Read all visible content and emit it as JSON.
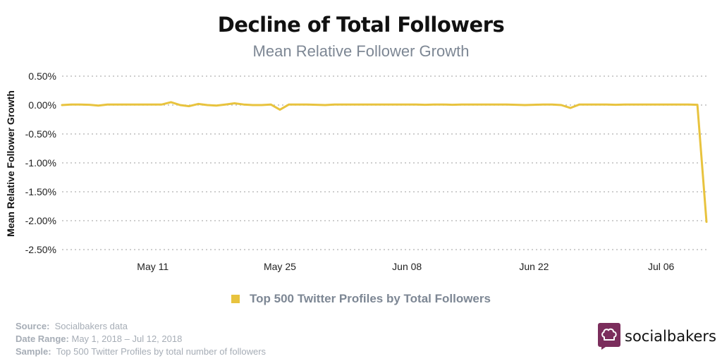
{
  "colors": {
    "series": "#e8c33e",
    "grid": "#bdbdbd",
    "subtitle": "#7d8794",
    "brand": "#7b2d5c"
  },
  "footer": {
    "source_label": "Source:",
    "source_value": "Socialbakers data",
    "date_label": "Date Range:",
    "date_value": "May 1, 2018  – Jul 12, 2018",
    "sample_label": "Sample:",
    "sample_value": "Top 500 Twitter Profiles by total number of followers"
  },
  "brand": {
    "name": "socialbakers",
    "icon": "chef-hat-icon"
  },
  "chart_data": {
    "type": "line",
    "title": "Decline of Total Followers",
    "subtitle": "Mean Relative Follower Growth",
    "xlabel": "",
    "ylabel": "Mean Relative Follower Growth",
    "ylim": [
      -2.5,
      0.5
    ],
    "y_ticks": [
      0.5,
      0.0,
      -0.5,
      -1.0,
      -1.5,
      -2.0,
      -2.5
    ],
    "y_tick_labels": [
      "0.50%",
      "0.00%",
      "-0.50%",
      "-1.00%",
      "-1.50%",
      "-2.00%",
      "-2.50%"
    ],
    "x_range": [
      "2018-05-01",
      "2018-07-12"
    ],
    "x_ticks": [
      "May 11",
      "May 25",
      "Jun 08",
      "Jun 22",
      "Jul 06"
    ],
    "x_tick_days": [
      10,
      24,
      38,
      52,
      66
    ],
    "grid": "horizontal dotted",
    "legend_position": "bottom-center",
    "series": [
      {
        "name": "Top 500 Twitter Profiles by Total Followers",
        "x_days": [
          0,
          1,
          2,
          3,
          4,
          5,
          6,
          7,
          8,
          9,
          10,
          11,
          12,
          13,
          14,
          15,
          16,
          17,
          18,
          19,
          20,
          21,
          22,
          23,
          24,
          25,
          26,
          27,
          28,
          29,
          30,
          31,
          32,
          33,
          34,
          35,
          36,
          37,
          38,
          39,
          40,
          41,
          42,
          43,
          44,
          45,
          46,
          47,
          48,
          49,
          50,
          51,
          52,
          53,
          54,
          55,
          56,
          57,
          58,
          59,
          60,
          61,
          62,
          63,
          64,
          65,
          66,
          67,
          68,
          69,
          70,
          71
        ],
        "values": [
          0.0,
          0.01,
          0.01,
          0.005,
          -0.01,
          0.01,
          0.01,
          0.01,
          0.01,
          0.01,
          0.01,
          0.01,
          0.05,
          0.0,
          -0.02,
          0.02,
          0.0,
          -0.01,
          0.01,
          0.03,
          0.01,
          0.0,
          0.0,
          0.01,
          -0.08,
          0.01,
          0.01,
          0.01,
          0.005,
          0.0,
          0.01,
          0.01,
          0.01,
          0.01,
          0.01,
          0.01,
          0.01,
          0.01,
          0.01,
          0.01,
          0.005,
          0.01,
          0.01,
          0.005,
          0.01,
          0.01,
          0.01,
          0.01,
          0.01,
          0.01,
          0.005,
          0.0,
          0.005,
          0.01,
          0.01,
          0.0,
          -0.05,
          0.01,
          0.01,
          0.01,
          0.01,
          0.005,
          0.01,
          0.01,
          0.01,
          0.01,
          0.01,
          0.01,
          0.01,
          0.01,
          0.005,
          -2.02
        ]
      }
    ]
  }
}
